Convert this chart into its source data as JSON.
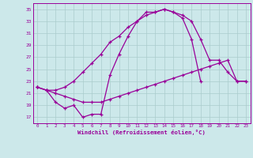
{
  "xlabel": "Windchill (Refroidissement éolien,°C)",
  "background_color": "#cce8ea",
  "line_color": "#990099",
  "grid_color": "#aacccc",
  "xlim": [
    -0.5,
    23.5
  ],
  "ylim": [
    16,
    36
  ],
  "yticks": [
    17,
    19,
    21,
    23,
    25,
    27,
    29,
    31,
    33,
    35
  ],
  "xticks": [
    0,
    1,
    2,
    3,
    4,
    5,
    6,
    7,
    8,
    9,
    10,
    11,
    12,
    13,
    14,
    15,
    16,
    17,
    18,
    19,
    20,
    21,
    22,
    23
  ],
  "series": [
    [
      22.0,
      21.5,
      21.5,
      22.0,
      23.0,
      24.5,
      26.0,
      27.5,
      29.5,
      30.5,
      32.0,
      33.0,
      34.5,
      34.5,
      35.0,
      34.5,
      34.0,
      33.0,
      30.0,
      26.5,
      26.5,
      24.5,
      23.0,
      23.0
    ],
    [
      22.0,
      21.5,
      19.5,
      18.5,
      19.0,
      17.0,
      17.5,
      17.5,
      24.0,
      27.5,
      30.5,
      33.0,
      34.0,
      34.5,
      35.0,
      34.5,
      33.5,
      30.0,
      23.0
    ],
    [
      22.0,
      21.5,
      21.0,
      20.5,
      20.0,
      19.5,
      19.5,
      19.5,
      20.0,
      20.5,
      21.0,
      21.5,
      22.0,
      22.5,
      23.0,
      23.5,
      24.0,
      24.5,
      25.0,
      25.5,
      26.0,
      26.5,
      23.0,
      23.0
    ]
  ],
  "series_x": [
    [
      0,
      1,
      2,
      3,
      4,
      5,
      6,
      7,
      8,
      9,
      10,
      11,
      12,
      13,
      14,
      15,
      16,
      17,
      18,
      19,
      20,
      21,
      22,
      23
    ],
    [
      0,
      1,
      2,
      3,
      4,
      5,
      6,
      7,
      8,
      9,
      10,
      11,
      12,
      13,
      14,
      15,
      16,
      17,
      18
    ],
    [
      0,
      1,
      2,
      3,
      4,
      5,
      6,
      7,
      8,
      9,
      10,
      11,
      12,
      13,
      14,
      15,
      16,
      17,
      18,
      19,
      20,
      21,
      22,
      23
    ]
  ]
}
